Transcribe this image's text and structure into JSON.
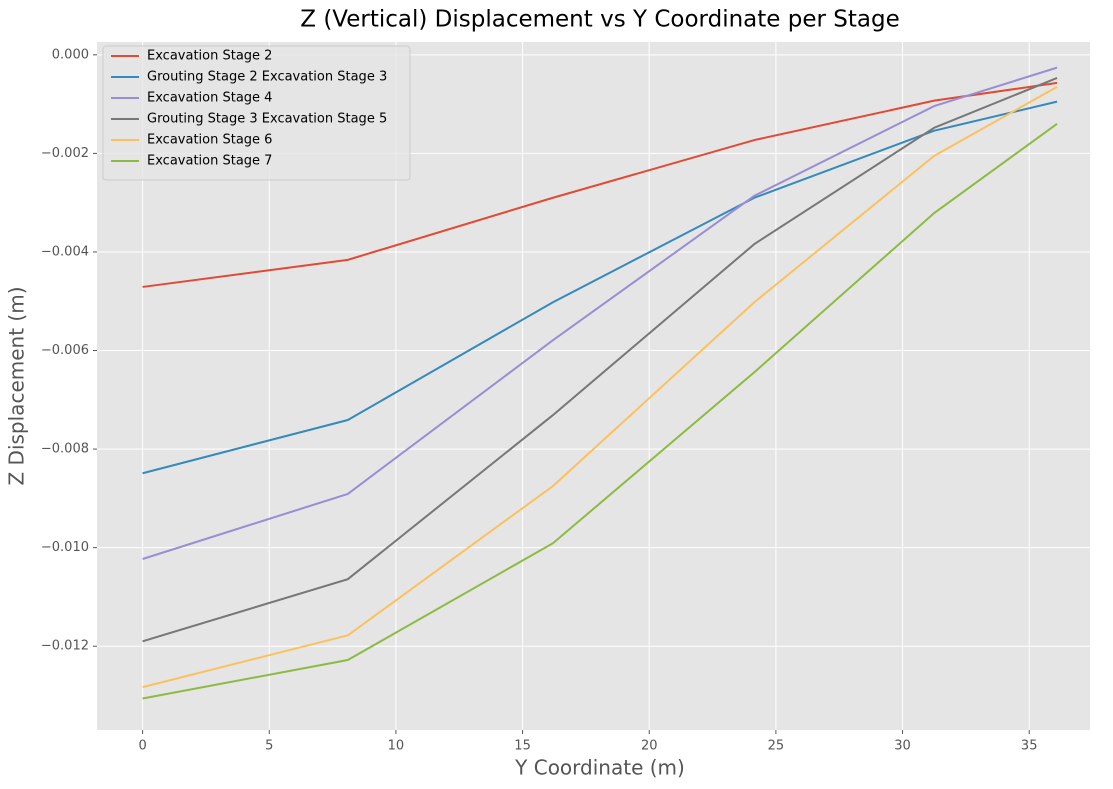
{
  "chart_data": {
    "type": "line",
    "title": "Z (Vertical) Displacement vs Y Coordinate per Stage",
    "x_label": "Y Coordinate (m)",
    "y_label": "Z Displacement (m)",
    "x": [
      0,
      8.1,
      16.2,
      24.15,
      31.25,
      36.1
    ],
    "series": [
      {
        "name": "Excavation Stage 2",
        "color": "#E24A33",
        "values": [
          -0.00471,
          -0.00416,
          -0.0029,
          -0.00173,
          -0.00093,
          -0.00057
        ]
      },
      {
        "name": "Grouting Stage 2 Excavation Stage 3",
        "color": "#348ABD",
        "values": [
          -0.00849,
          -0.00741,
          -0.00502,
          -0.0029,
          -0.00154,
          -0.00095
        ]
      },
      {
        "name": "Excavation Stage 4",
        "color": "#988ED5",
        "values": [
          -0.01023,
          -0.00891,
          -0.00579,
          -0.00286,
          -0.00104,
          -0.00026
        ]
      },
      {
        "name": "Grouting Stage 3 Excavation Stage 5",
        "color": "#777777",
        "values": [
          -0.0119,
          -0.01064,
          -0.00731,
          -0.00384,
          -0.00148,
          -0.00047
        ]
      },
      {
        "name": "Excavation Stage 6",
        "color": "#FBC15E",
        "values": [
          -0.01283,
          -0.01178,
          -0.00875,
          -0.00502,
          -0.00205,
          -0.00065
        ]
      },
      {
        "name": "Excavation Stage 7",
        "color": "#8EBA42",
        "values": [
          -0.01306,
          -0.01228,
          -0.00991,
          -0.00644,
          -0.00321,
          -0.0014
        ]
      }
    ],
    "xlim": [
      -1.8,
      37.4
    ],
    "ylim": [
      -0.0137,
      0.00026
    ],
    "xticks": [
      0,
      5,
      10,
      15,
      20,
      25,
      30,
      35
    ],
    "yticks": [
      {
        "value": -0.012,
        "label": "−0.012"
      },
      {
        "value": -0.01,
        "label": "−0.010"
      },
      {
        "value": -0.008,
        "label": "−0.008"
      },
      {
        "value": -0.006,
        "label": "−0.006"
      },
      {
        "value": -0.004,
        "label": "−0.004"
      },
      {
        "value": -0.002,
        "label": "−0.002"
      },
      {
        "value": 0,
        "label": "0.000"
      }
    ],
    "grid": true,
    "legend": "upper-left"
  }
}
